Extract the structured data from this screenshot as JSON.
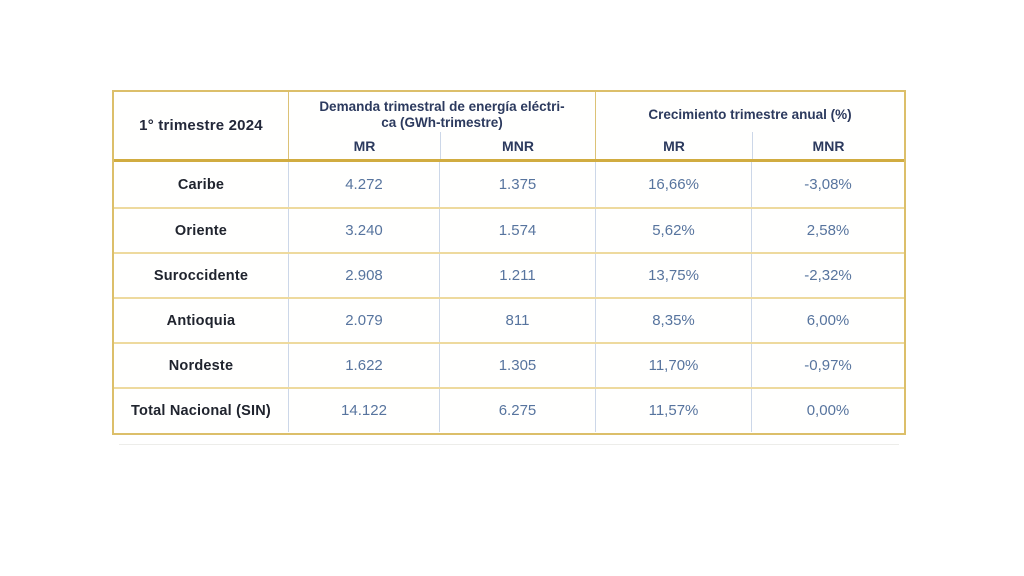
{
  "chart_data": {
    "type": "table",
    "corner_header": "1° trimestre 2024",
    "column_groups": [
      {
        "title": "Demanda trimestral de energía eléctrica (GWh-trimestre)",
        "title_lines": [
          "Demanda trimestral de energía eléctri-",
          "ca (GWh-trimestre)"
        ],
        "columns": [
          "MR",
          "MNR"
        ]
      },
      {
        "title": "Crecimiento trimestre anual (%)",
        "title_lines": [
          "Crecimiento trimestre anual (%)"
        ],
        "columns": [
          "MR",
          "MNR"
        ]
      }
    ],
    "rows": [
      {
        "label": "Caribe",
        "values": [
          "4.272",
          "1.375",
          "16,66%",
          "-3,08%"
        ]
      },
      {
        "label": "Oriente",
        "values": [
          "3.240",
          "1.574",
          "5,62%",
          "2,58%"
        ]
      },
      {
        "label": "Suroccidente",
        "values": [
          "2.908",
          "1.211",
          "13,75%",
          "-2,32%"
        ]
      },
      {
        "label": "Antioquia",
        "values": [
          "2.079",
          "811",
          "8,35%",
          "6,00%"
        ]
      },
      {
        "label": "Nordeste",
        "values": [
          "1.622",
          "1.305",
          "11,70%",
          "-0,97%"
        ]
      },
      {
        "label": "Total Nacional (SIN)",
        "values": [
          "14.122",
          "6.275",
          "11,57%",
          "0,00%"
        ]
      }
    ]
  },
  "colors": {
    "outer_border_gold": "#dcbf6a",
    "header_rule_gold": "#d1ac40",
    "row_line_gold": "#eeda9e",
    "cell_divider_blue": "#ccd7e8",
    "header_text_navy": "#2c3a5e",
    "label_text_dark": "#20242e",
    "value_text_blue": "#57749e",
    "background": "#ffffff"
  }
}
